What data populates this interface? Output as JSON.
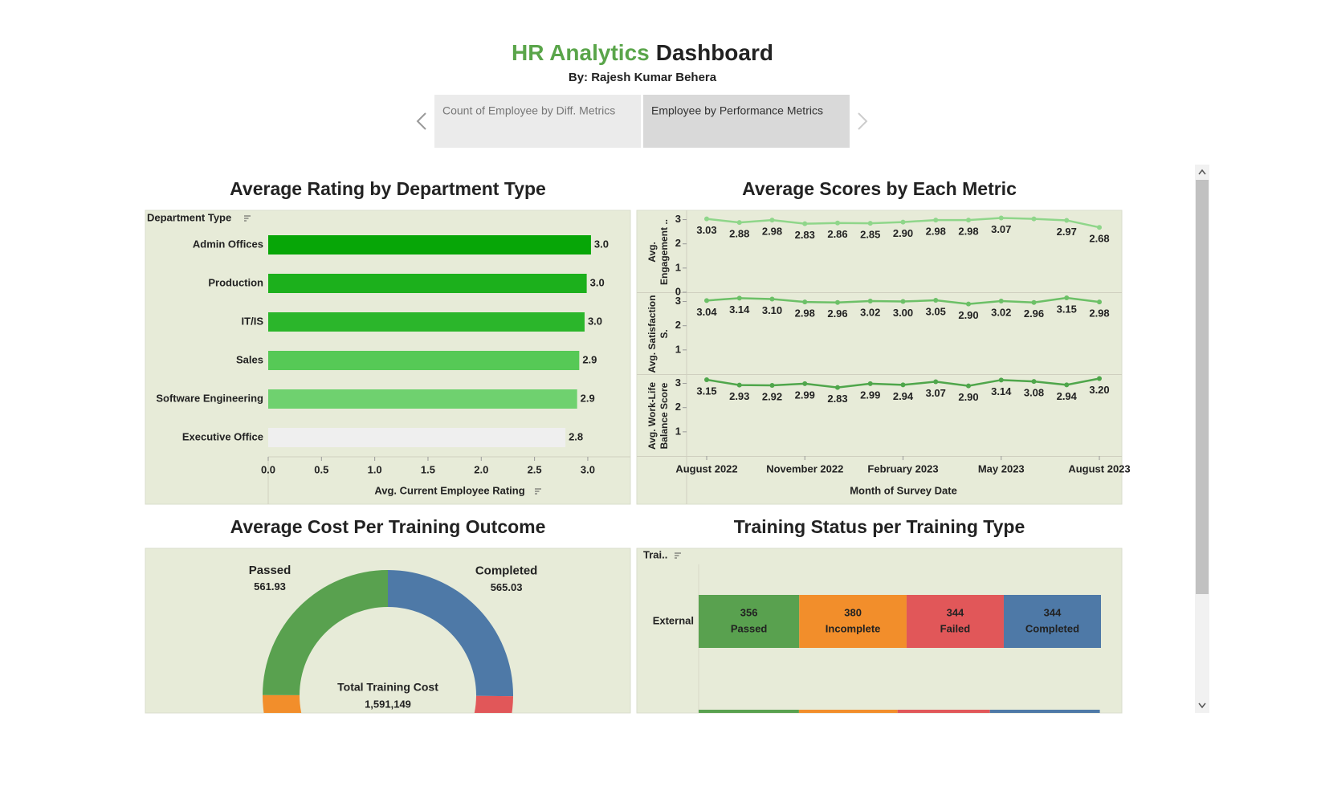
{
  "header": {
    "title_accent": "HR Analytics",
    "title_rest": "Dashboard",
    "byline": "By: Rajesh Kumar Behera"
  },
  "tabs": [
    "Count of Employee by Diff. Metrics",
    "Employee by Performance Metrics"
  ],
  "chart_data": [
    {
      "type": "bar",
      "title": "Average Rating by Department Type",
      "y_label": "Department Type",
      "x_label": "Avg. Current Employee Rating",
      "categories": [
        "Admin Offices",
        "Production",
        "IT/IS",
        "Sales",
        "Software Engineering",
        "Executive Office"
      ],
      "values": [
        3.03,
        2.99,
        2.97,
        2.92,
        2.9,
        2.79
      ],
      "value_labels": [
        "3.0",
        "3.0",
        "3.0",
        "2.9",
        "2.9",
        "2.8"
      ],
      "colors": [
        "#07a607",
        "#1cb01c",
        "#2bb62b",
        "#56c956",
        "#6fd16f",
        "#efefef"
      ],
      "xlim": [
        0,
        3.4
      ],
      "xticks": [
        {
          "value": 0,
          "label": "0.0"
        },
        0.5,
        {
          "value": 1,
          "label": "1.0"
        },
        1.5,
        {
          "value": 2,
          "label": "2.0"
        },
        2.5,
        {
          "value": 3,
          "label": "3.0"
        }
      ],
      "grid": false
    },
    {
      "type": "line",
      "title": "Average Scores by Each Metric",
      "x_label": "Month of Survey Date",
      "x": [
        "2022-08",
        "2022-09",
        "2022-10",
        "2022-11",
        "2022-12",
        "2023-01",
        "2023-02",
        "2023-03",
        "2023-04",
        "2023-05",
        "2023-06",
        "2023-07",
        "2023-08"
      ],
      "xticks": [
        {
          "value": "2022-08",
          "label": "August 2022"
        },
        {
          "value": "2022-11",
          "label": "November 2022"
        },
        {
          "value": "2023-02",
          "label": "February 2023"
        },
        {
          "value": "2023-05",
          "label": "May 2023"
        },
        {
          "value": "2023-08",
          "label": "August 2023"
        }
      ],
      "series": [
        {
          "name": "Avg. Engagement ..",
          "color": "#8fd68a",
          "values": [
            3.03,
            2.88,
            2.98,
            2.83,
            2.86,
            2.85,
            2.9,
            2.98,
            2.98,
            3.07,
            3.03,
            2.97,
            2.68
          ],
          "value_labels": [
            "3.03",
            "2.88",
            "2.98",
            "2.83",
            "2.86",
            "2.85",
            "2.90",
            "2.98",
            "2.98",
            "3.07",
            null,
            "2.97",
            "2.68"
          ],
          "ylim": [
            0,
            3.35
          ],
          "yticks": [
            0,
            1,
            2,
            3
          ]
        },
        {
          "name": "Avg. Satisfaction S.",
          "color": "#6cc067",
          "values": [
            3.04,
            3.14,
            3.1,
            2.98,
            2.96,
            3.02,
            3.0,
            3.05,
            2.9,
            3.02,
            2.96,
            3.15,
            2.98
          ],
          "value_labels": [
            "3.04",
            "3.14",
            "3.10",
            "2.98",
            "2.96",
            "3.02",
            "3.00",
            "3.05",
            "2.90",
            "3.02",
            "2.96",
            "3.15",
            "2.98"
          ],
          "ylim": [
            0,
            3.35
          ],
          "yticks": [
            1,
            2,
            3
          ]
        },
        {
          "name": "Avg. Work-Life Balance Score",
          "color": "#4fa64b",
          "values": [
            3.15,
            2.93,
            2.92,
            2.99,
            2.83,
            2.99,
            2.94,
            3.07,
            2.9,
            3.14,
            3.08,
            2.94,
            3.2
          ],
          "value_labels": [
            "3.15",
            "2.93",
            "2.92",
            "2.99",
            "2.83",
            "2.99",
            "2.94",
            "3.07",
            "2.90",
            "3.14",
            "3.08",
            "2.94",
            "3.20"
          ],
          "ylim": [
            0,
            3.35
          ],
          "yticks": [
            1,
            2,
            3
          ]
        }
      ]
    },
    {
      "type": "pie",
      "title": "Average Cost Per Training Outcome",
      "categories": [
        "Completed",
        null,
        null,
        "Passed"
      ],
      "values": [
        565.03,
        563,
        560,
        561.93
      ],
      "colors": [
        "#4e79a7",
        "#e15759",
        "#f28e2b",
        "#59a14f"
      ],
      "center_label": "Total Training Cost",
      "total": {
        "value": 1591149,
        "label": "1,591,149"
      }
    },
    {
      "type": "bar",
      "title": "Training Status per Training Type",
      "y_label": "Trai..",
      "categories": [
        "External",
        null
      ],
      "series": [
        {
          "name": "Passed",
          "color": "#59a14f",
          "values": [
            356,
            355
          ]
        },
        {
          "name": "Incomplete",
          "color": "#f28e2b",
          "values": [
            380,
            349
          ]
        },
        {
          "name": "Failed",
          "color": "#e15759",
          "values": [
            344,
            327
          ]
        },
        {
          "name": "Completed",
          "color": "#4e79a7",
          "values": [
            344,
            389
          ]
        }
      ]
    }
  ]
}
